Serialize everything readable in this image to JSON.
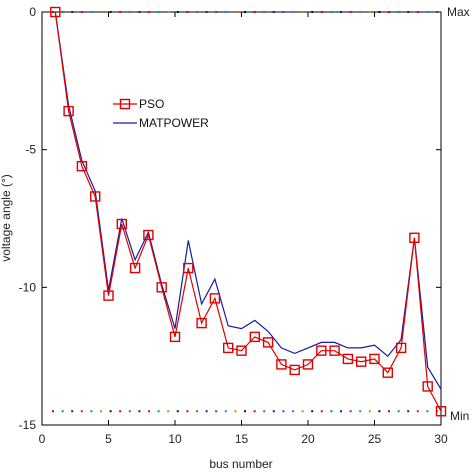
{
  "chart_data": {
    "type": "line",
    "title": "",
    "xlabel": "bus number",
    "ylabel": "voltage angle (°)",
    "xlim": [
      0,
      30
    ],
    "ylim": [
      -15,
      0
    ],
    "xticks": [
      0,
      5,
      10,
      15,
      20,
      25,
      30
    ],
    "yticks": [
      0,
      -5,
      -10,
      -15
    ],
    "grid": false,
    "legend_position": "upper-left",
    "series": [
      {
        "name": "PSO",
        "color": "#e00000",
        "marker": "square",
        "x": [
          1,
          2,
          3,
          4,
          5,
          6,
          7,
          8,
          9,
          10,
          11,
          12,
          13,
          14,
          15,
          16,
          17,
          18,
          19,
          20,
          21,
          22,
          23,
          24,
          25,
          26,
          27,
          28,
          29,
          30
        ],
        "y": [
          0,
          -3.6,
          -5.6,
          -6.7,
          -10.3,
          -7.7,
          -9.3,
          -8.1,
          -10.0,
          -11.8,
          -9.3,
          -11.3,
          -10.4,
          -12.2,
          -12.3,
          -11.8,
          -12.0,
          -12.8,
          -13.0,
          -12.8,
          -12.3,
          -12.3,
          -12.6,
          -12.7,
          -12.6,
          -13.1,
          -12.2,
          -8.2,
          -13.6,
          -14.5
        ]
      },
      {
        "name": "MATPOWER",
        "color": "#1a1aa6",
        "marker": "none",
        "x": [
          1,
          2,
          3,
          4,
          5,
          6,
          7,
          8,
          9,
          10,
          11,
          12,
          13,
          14,
          15,
          16,
          17,
          18,
          19,
          20,
          21,
          22,
          23,
          24,
          25,
          26,
          27,
          28,
          29,
          30
        ],
        "y": [
          0,
          -3.4,
          -5.4,
          -6.5,
          -10.1,
          -7.5,
          -9.0,
          -8.0,
          -9.9,
          -11.5,
          -8.3,
          -10.6,
          -9.7,
          -11.4,
          -11.5,
          -11.2,
          -11.6,
          -12.2,
          -12.4,
          -12.2,
          -12.0,
          -12.0,
          -12.2,
          -12.2,
          -12.1,
          -12.5,
          -11.9,
          -8.2,
          -12.9,
          -13.7
        ]
      }
    ],
    "reference_lines": [
      {
        "label": "Max",
        "y": 0,
        "style": "dotted"
      },
      {
        "label": "Min",
        "y": -14.5,
        "style": "dotted"
      }
    ]
  },
  "palette": {
    "dots": [
      "#e00000",
      "#1a9a1a",
      "#1a1aa6",
      "#c000c0",
      "#00a0a0",
      "#a0a000",
      "#111111"
    ]
  }
}
